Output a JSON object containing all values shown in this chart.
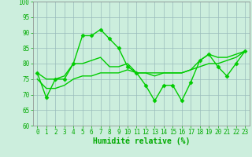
{
  "x": [
    0,
    1,
    2,
    3,
    4,
    5,
    6,
    7,
    8,
    9,
    10,
    11,
    12,
    13,
    14,
    15,
    16,
    17,
    18,
    19,
    20,
    21,
    22,
    23
  ],
  "line1": [
    77,
    69,
    75,
    75,
    80,
    89,
    89,
    91,
    88,
    85,
    79,
    77,
    73,
    68,
    73,
    73,
    68,
    74,
    81,
    83,
    79,
    76,
    80,
    84
  ],
  "line2": [
    77,
    75,
    75,
    76,
    80,
    80,
    81,
    82,
    79,
    79,
    80,
    77,
    77,
    76,
    77,
    77,
    77,
    78,
    81,
    83,
    82,
    82,
    83,
    84
  ],
  "line3": [
    75,
    72,
    72,
    73,
    75,
    76,
    76,
    77,
    77,
    77,
    78,
    77,
    77,
    77,
    77,
    77,
    77,
    78,
    79,
    80,
    80,
    81,
    82,
    84
  ],
  "line_color": "#00cc00",
  "bg_color": "#cceedd",
  "grid_color": "#99bbbb",
  "xlabel": "Humidité relative (%)",
  "ylim": [
    60,
    100
  ],
  "xlim": [
    -0.5,
    23.5
  ],
  "yticks": [
    60,
    65,
    70,
    75,
    80,
    85,
    90,
    95,
    100
  ],
  "xticks": [
    0,
    1,
    2,
    3,
    4,
    5,
    6,
    7,
    8,
    9,
    10,
    11,
    12,
    13,
    14,
    15,
    16,
    17,
    18,
    19,
    20,
    21,
    22,
    23
  ],
  "marker": "D",
  "markersize": 2.5,
  "linewidth": 1.0,
  "xlabel_fontsize": 7,
  "tick_fontsize": 5.5,
  "tick_color": "#00aa00",
  "xlabel_color": "#00aa00",
  "xlabel_bold": true
}
